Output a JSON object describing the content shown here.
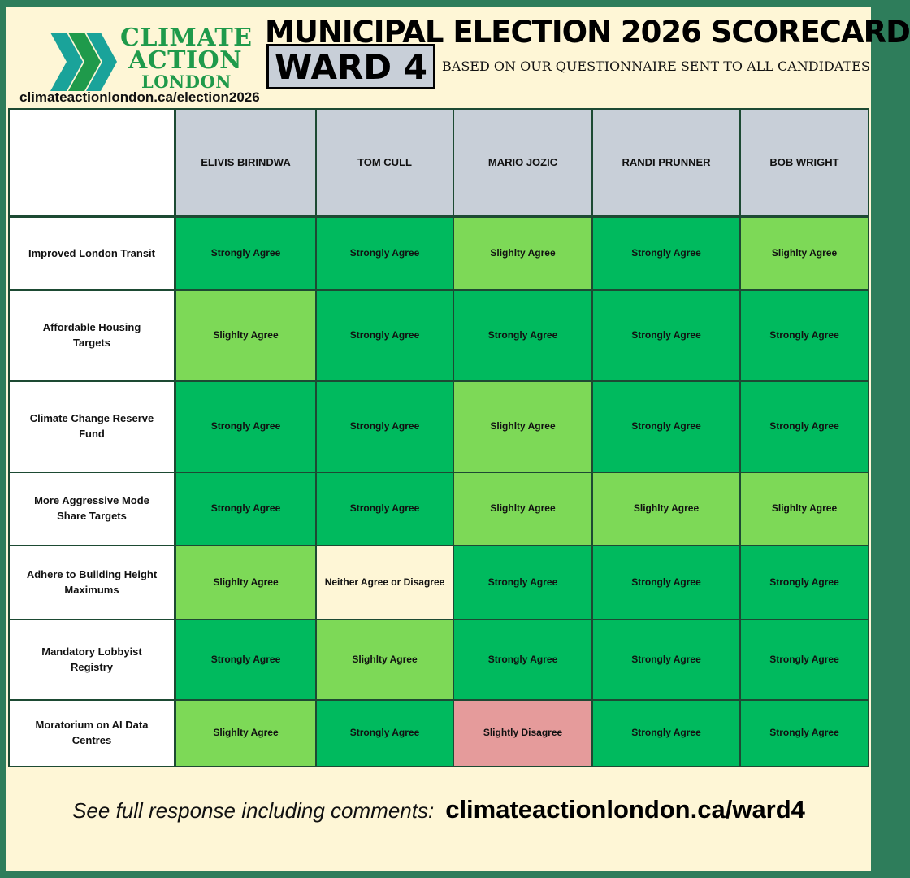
{
  "brand": {
    "org_line_1": "CLIMATE",
    "org_line_2": "ACTION",
    "org_line_3": "LONDON",
    "site_url": "climateactionlondon.ca/election2026",
    "color_green": "#1f9a4b",
    "color_teal": "#1aa39a"
  },
  "header": {
    "title": "MUNICIPAL ELECTION 2026 SCORECARD",
    "ward_label": "WARD 4",
    "subtitle": "BASED ON OUR QUESTIONNAIRE SENT TO ALL CANDIDATES"
  },
  "table": {
    "candidates": [
      "ELIVIS BIRINDWA",
      "TOM CULL",
      "MARIO JOZIC",
      "RANDI PRUNNER",
      "BOB WRIGHT"
    ],
    "rows": [
      {
        "question": "Improved London Transit",
        "responses": [
          "Strongly Agree",
          "Strongly Agree",
          "Slighlty Agree",
          "Strongly Agree",
          "Slighlty Agree"
        ]
      },
      {
        "question": "Affordable Housing Targets",
        "responses": [
          "Slighlty Agree",
          "Strongly Agree",
          "Strongly Agree",
          "Strongly Agree",
          "Strongly Agree"
        ]
      },
      {
        "question": "Climate Change Reserve Fund",
        "responses": [
          "Strongly Agree",
          "Strongly Agree",
          "Slighlty Agree",
          "Strongly Agree",
          "Strongly Agree"
        ]
      },
      {
        "question": "More Aggressive Mode Share Targets",
        "responses": [
          "Strongly Agree",
          "Strongly Agree",
          "Slighlty Agree",
          "Slighlty Agree",
          "Slighlty Agree"
        ]
      },
      {
        "question": "Adhere to Building Height Maximums",
        "responses": [
          "Slighlty Agree",
          "Neither Agree or Disagree",
          "Strongly Agree",
          "Strongly Agree",
          "Strongly Agree"
        ]
      },
      {
        "question": "Mandatory Lobbyist Registry",
        "responses": [
          "Strongly Agree",
          "Slighlty Agree",
          "Strongly Agree",
          "Strongly Agree",
          "Strongly Agree"
        ]
      },
      {
        "question": "Moratorium on AI Data Centres",
        "responses": [
          "Slighlty Agree",
          "Strongly Agree",
          "Slightly Disagree",
          "Strongly Agree",
          "Strongly Agree"
        ]
      }
    ],
    "response_colors": {
      "Strongly Agree": "#00ba5e",
      "Slighlty Agree": "#7dd957",
      "Neither Agree or Disagree": "#fef6d6",
      "Slightly Disagree": "#e59b9b"
    }
  },
  "footer": {
    "prompt": "See full response including comments:",
    "url": "climateactionlondon.ca/ward4"
  }
}
